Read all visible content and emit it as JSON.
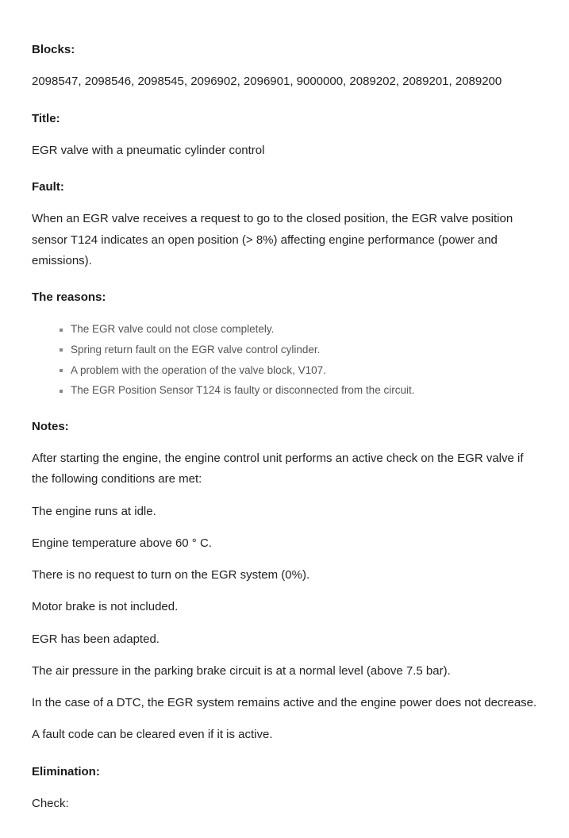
{
  "headings": {
    "blocks": "Blocks:",
    "title": "Title:",
    "fault": "Fault:",
    "reasons": "The reasons:",
    "notes": "Notes:",
    "elimination": "Elimination:"
  },
  "blocks_text": "2098547, 2098546, 2098545, 2096902, 2096901, 9000000, 2089202, 2089201, 2089200",
  "title_text": "EGR valve with a pneumatic cylinder control",
  "fault_text": "When an EGR valve receives a request to go to the closed position, the EGR valve position sensor T124 indicates an open position (> 8%) affecting engine performance (power and emissions).",
  "reasons": [
    "The EGR valve could not close completely.",
    "Spring return fault on the EGR valve control cylinder.",
    "A problem with the operation of the valve block, V107.",
    "The EGR Position Sensor T124 is faulty or disconnected from the circuit."
  ],
  "notes": [
    "After starting the engine, the engine control unit performs an active check on the EGR valve if the following conditions are met:",
    "The engine runs at idle.",
    "Engine temperature above 60 ° C.",
    "There is no request to turn on the EGR system (0%).",
    "Motor brake is not included.",
    "EGR has been adapted.",
    "The air pressure in the parking brake circuit is at a normal level (above 7.5 bar).",
    "In the case of a DTC, the EGR system remains active and the engine power does not decrease.",
    "A fault code can be cleared even if it is active."
  ],
  "check_label": "Check:"
}
